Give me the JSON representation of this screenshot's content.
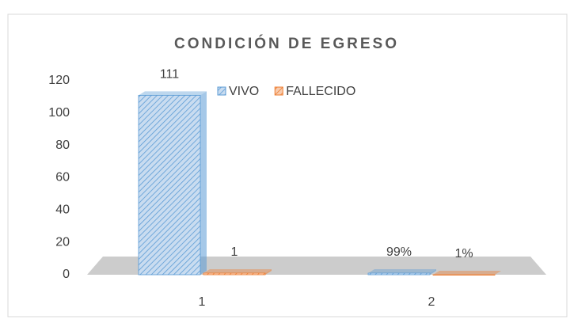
{
  "chart_data": {
    "type": "bar3d",
    "title": "CONDICIÓN DE EGRESO",
    "categories": [
      "1",
      "2"
    ],
    "series": [
      {
        "name": "VIVO",
        "color": "#5b9bd5",
        "values": [
          111,
          0.99
        ],
        "value_labels": [
          "111",
          "99%"
        ]
      },
      {
        "name": "FALLECIDO",
        "color": "#ed7d31",
        "values": [
          1,
          0.01
        ],
        "value_labels": [
          "1",
          "1%"
        ]
      }
    ],
    "ylim": [
      0,
      120
    ],
    "yticks": [
      0,
      20,
      40,
      60,
      80,
      100,
      120
    ],
    "grid": false,
    "legend": "top"
  }
}
